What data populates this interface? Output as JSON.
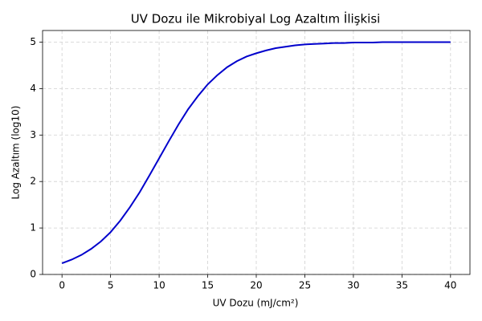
{
  "chart_data": {
    "type": "line",
    "title": "UV Dozu ile Mikrobiyal Log Azaltım İlişkisi",
    "x_label": "UV Dozu (mJ/cm²)",
    "y_label": "Log Azaltım (log10)",
    "x": [
      0,
      1,
      2,
      3,
      4,
      5,
      6,
      7,
      8,
      9,
      10,
      11,
      12,
      13,
      14,
      15,
      16,
      17,
      18,
      19,
      20,
      21,
      22,
      23,
      24,
      25,
      26,
      27,
      28,
      29,
      30,
      31,
      32,
      33,
      34,
      35,
      36,
      37,
      38,
      39,
      40
    ],
    "series": [
      {
        "name": "Log Azaltım",
        "color": "#0000cc",
        "values": [
          0.24,
          0.32,
          0.42,
          0.55,
          0.71,
          0.91,
          1.16,
          1.45,
          1.77,
          2.13,
          2.5,
          2.87,
          3.23,
          3.56,
          3.84,
          4.09,
          4.29,
          4.46,
          4.59,
          4.69,
          4.76,
          4.82,
          4.87,
          4.9,
          4.93,
          4.95,
          4.96,
          4.97,
          4.98,
          4.98,
          4.99,
          4.99,
          4.99,
          5.0,
          5.0,
          5.0,
          5.0,
          5.0,
          5.0,
          5.0,
          5.0
        ]
      }
    ],
    "xlim": [
      -2,
      42
    ],
    "xticks": [
      0,
      5,
      10,
      15,
      20,
      25,
      30,
      35,
      40
    ],
    "ylim": [
      0,
      5.25
    ],
    "yticks": [
      0,
      1,
      2,
      3,
      4,
      5
    ],
    "grid": true
  }
}
